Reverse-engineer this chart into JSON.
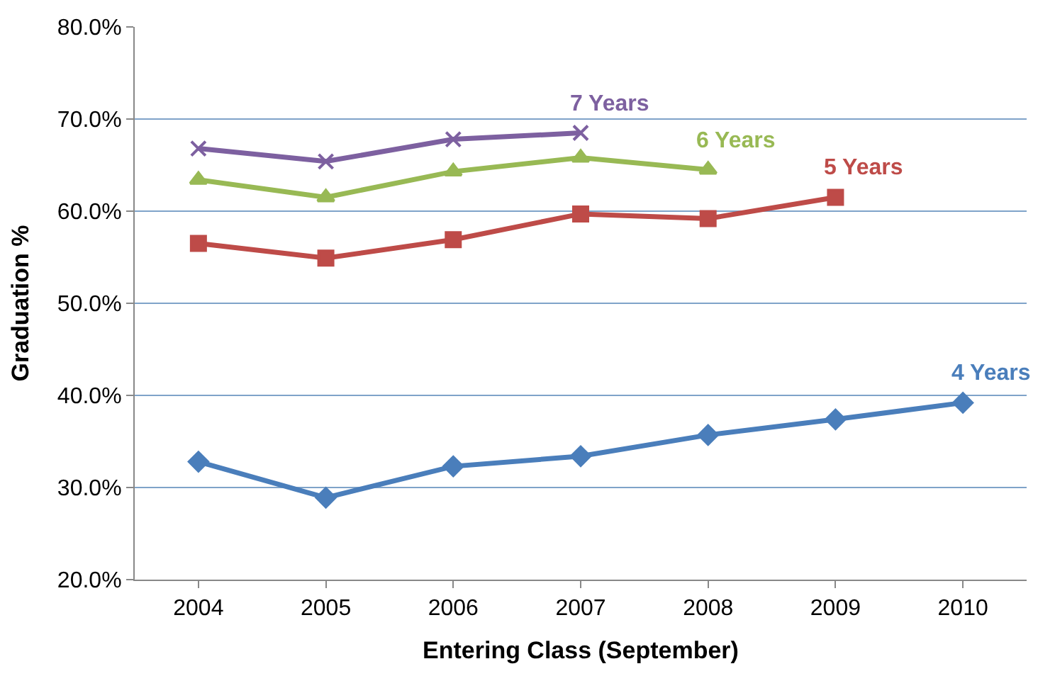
{
  "chart_data": {
    "type": "line",
    "xlabel": "Entering Class (September)",
    "ylabel": "Graduation %",
    "categories": [
      "2004",
      "2005",
      "2006",
      "2007",
      "2008",
      "2009",
      "2010"
    ],
    "ylim": [
      20,
      80
    ],
    "yticks": [
      {
        "value": 20,
        "label": "20.0%"
      },
      {
        "value": 30,
        "label": "30.0%"
      },
      {
        "value": 40,
        "label": "40.0%"
      },
      {
        "value": 50,
        "label": "50.0%"
      },
      {
        "value": 60,
        "label": "60.0%"
      },
      {
        "value": 70,
        "label": "70.0%"
      },
      {
        "value": 80,
        "label": "80.0%"
      }
    ],
    "grid": "y",
    "legend": false,
    "series": [
      {
        "name": "4 Years",
        "color": "#4a7ebb",
        "marker": "diamond",
        "values": [
          32.8,
          28.9,
          32.3,
          33.4,
          35.7,
          37.4,
          39.2
        ]
      },
      {
        "name": "5 Years",
        "color": "#be4b48",
        "marker": "square",
        "values": [
          56.5,
          54.9,
          56.9,
          59.7,
          59.2,
          61.5,
          null
        ]
      },
      {
        "name": "6 Years",
        "color": "#98b954",
        "marker": "triangle",
        "values": [
          63.4,
          61.5,
          64.3,
          65.8,
          64.5,
          null,
          null
        ]
      },
      {
        "name": "7 Years",
        "color": "#7d60a0",
        "marker": "cross",
        "values": [
          66.8,
          65.4,
          67.8,
          68.5,
          null,
          null,
          null
        ]
      }
    ]
  }
}
